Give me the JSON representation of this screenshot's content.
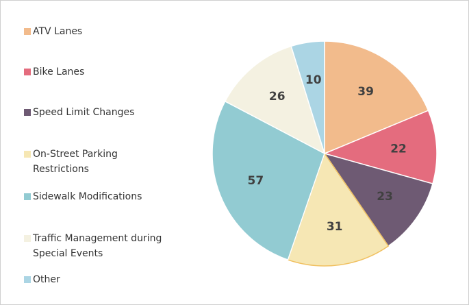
{
  "chart_data": {
    "type": "pie",
    "categories": [
      "ATV Lanes",
      "Bike Lanes",
      "Speed Limit Changes",
      "On-Street Parking Restrictions",
      "Sidewalk Modifications",
      "Traffic Management during Special Events",
      "Other"
    ],
    "values": [
      39,
      22,
      23,
      31,
      57,
      26,
      10
    ],
    "colors": [
      "#f2bb8c",
      "#e46c7e",
      "#6e5a73",
      "#f6e7b4",
      "#92cbd2",
      "#f4f1e1",
      "#abd5e4"
    ],
    "legend": "left"
  }
}
